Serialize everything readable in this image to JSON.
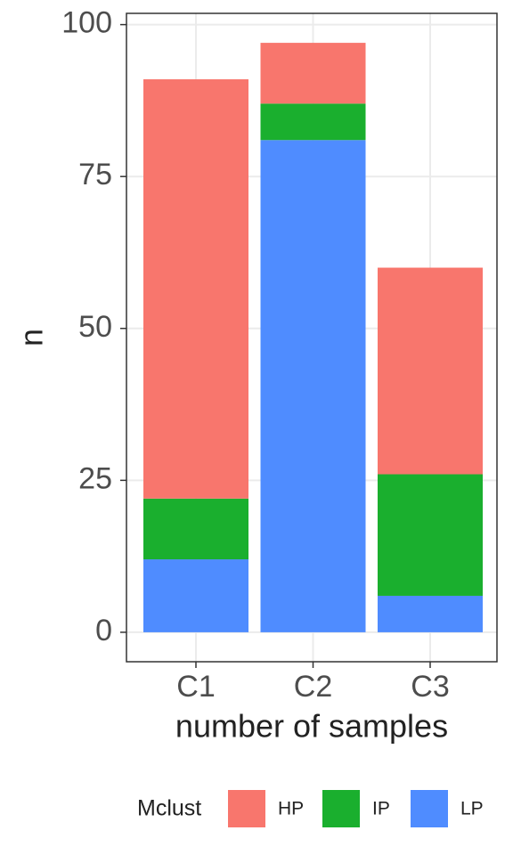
{
  "chart_data": {
    "type": "stacked_bar",
    "x_label": "number of samples",
    "y_label": "n",
    "categories": [
      "C1",
      "C2",
      "C3"
    ],
    "series": [
      {
        "name": "HP",
        "color": "#f8766d",
        "values": [
          69,
          10,
          34
        ]
      },
      {
        "name": "IP",
        "color": "#1aaf2e",
        "values": [
          10,
          6,
          20
        ]
      },
      {
        "name": "LP",
        "color": "#4f8cff",
        "values": [
          12,
          81,
          6
        ]
      }
    ],
    "stack_order": [
      "LP",
      "IP",
      "HP"
    ],
    "ylim": [
      -4.85,
      101.85
    ],
    "yticks": [
      0,
      25,
      50,
      75,
      100
    ],
    "grid": true,
    "legend_title": "Mclust",
    "legend_position": "bottom"
  }
}
